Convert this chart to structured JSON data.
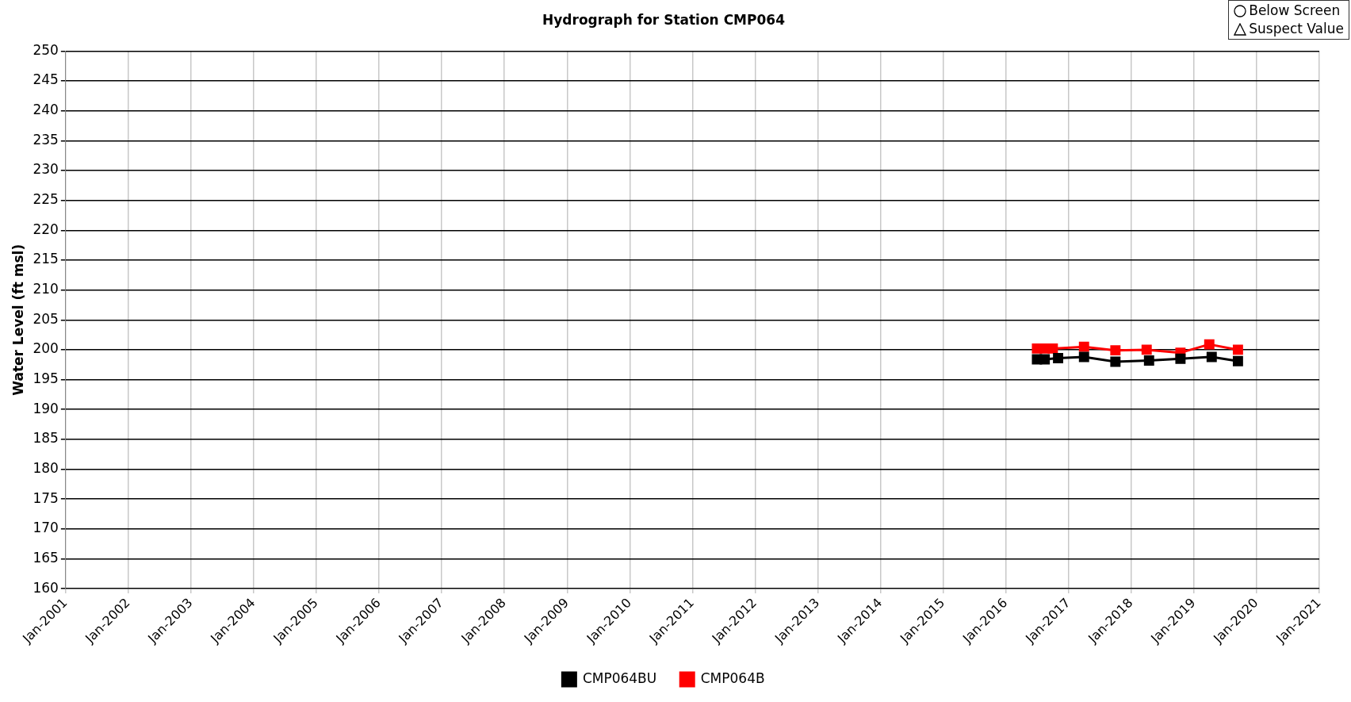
{
  "chart_data": {
    "type": "line",
    "title": "Hydrograph for Station CMP064",
    "ylabel": "Water Level (ft msl)",
    "annotations": [
      "Below Screen",
      "Suspect Value"
    ],
    "series": [
      {
        "name": "CMP064BU",
        "color": "#000000",
        "x": [
          "2016-07-01",
          "2016-08-15",
          "2016-11-01",
          "2017-04-01",
          "2017-10-01",
          "2018-04-15",
          "2018-10-15",
          "2019-04-15",
          "2019-09-15"
        ],
        "values": [
          198.4,
          198.4,
          198.6,
          198.8,
          198.0,
          198.2,
          198.5,
          198.8,
          198.1
        ]
      },
      {
        "name": "CMP064B",
        "color": "#ff0000",
        "x": [
          "2016-07-01",
          "2016-08-15",
          "2016-10-01",
          "2017-04-01",
          "2017-10-01",
          "2018-04-01",
          "2018-10-15",
          "2019-04-01",
          "2019-09-15"
        ],
        "values": [
          200.2,
          200.2,
          200.2,
          200.5,
          199.9,
          200.0,
          199.5,
          200.9,
          200.0
        ]
      }
    ],
    "xlim": [
      "2001-01-01",
      "2021-01-01"
    ],
    "xticks": [
      {
        "value": "2001-01-01",
        "label": "Jan-2001"
      },
      {
        "value": "2002-01-01",
        "label": "Jan-2002"
      },
      {
        "value": "2003-01-01",
        "label": "Jan-2003"
      },
      {
        "value": "2004-01-01",
        "label": "Jan-2004"
      },
      {
        "value": "2005-01-01",
        "label": "Jan-2005"
      },
      {
        "value": "2006-01-01",
        "label": "Jan-2006"
      },
      {
        "value": "2007-01-01",
        "label": "Jan-2007"
      },
      {
        "value": "2008-01-01",
        "label": "Jan-2008"
      },
      {
        "value": "2009-01-01",
        "label": "Jan-2009"
      },
      {
        "value": "2010-01-01",
        "label": "Jan-2010"
      },
      {
        "value": "2011-01-01",
        "label": "Jan-2011"
      },
      {
        "value": "2012-01-01",
        "label": "Jan-2012"
      },
      {
        "value": "2013-01-01",
        "label": "Jan-2013"
      },
      {
        "value": "2014-01-01",
        "label": "Jan-2014"
      },
      {
        "value": "2015-01-01",
        "label": "Jan-2015"
      },
      {
        "value": "2016-01-01",
        "label": "Jan-2016"
      },
      {
        "value": "2017-01-01",
        "label": "Jan-2017"
      },
      {
        "value": "2018-01-01",
        "label": "Jan-2018"
      },
      {
        "value": "2019-01-01",
        "label": "Jan-2019"
      },
      {
        "value": "2020-01-01",
        "label": "Jan-2020"
      },
      {
        "value": "2021-01-01",
        "label": "Jan-2021"
      }
    ],
    "ylim": [
      160,
      250
    ],
    "yticks": [
      160,
      165,
      170,
      175,
      180,
      185,
      190,
      195,
      200,
      205,
      210,
      215,
      220,
      225,
      230,
      235,
      240,
      245,
      250
    ],
    "grid": true,
    "legend": "bottom",
    "marker": "square",
    "line_style": "solid"
  }
}
